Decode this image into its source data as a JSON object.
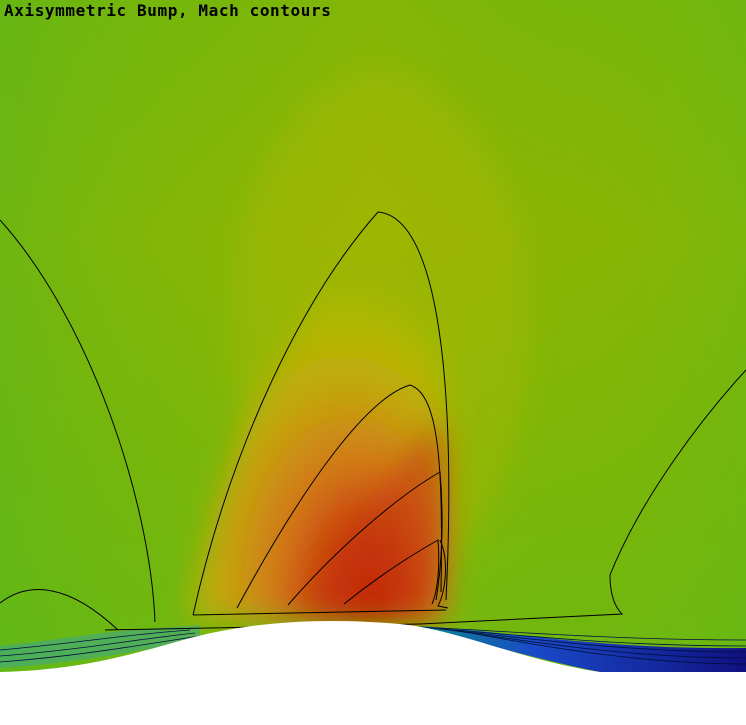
{
  "title": "Axisymmetric Bump, Mach contours",
  "chart_data": {
    "type": "heatmap",
    "title": "Axisymmetric Bump, Mach contours",
    "variable": "Mach",
    "colormap": [
      "#1010a0",
      "#1e6ad8",
      "#40c0c0",
      "#5db81c",
      "#8cb400",
      "#b8b800",
      "#d89418",
      "#c84a10",
      "#c01c00"
    ],
    "features": [
      "supersonic pocket above bump crest",
      "shock at downstream edge of pocket",
      "low-Mach separated region behind bump"
    ]
  }
}
